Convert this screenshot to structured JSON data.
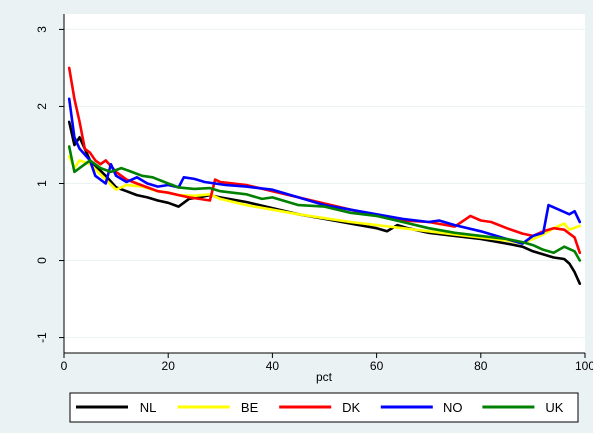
{
  "chart_data": {
    "type": "line",
    "title": "",
    "xlabel": "pct",
    "ylabel": "",
    "xlim": [
      0,
      100
    ],
    "ylim": [
      -1.2,
      3.2
    ],
    "xticks": [
      0,
      20,
      40,
      60,
      80,
      100
    ],
    "yticks": [
      -1,
      0,
      1,
      2,
      3
    ],
    "grid": "horizontal",
    "legend_position": "bottom",
    "series": [
      {
        "name": "NL",
        "color": "#000000",
        "points": [
          [
            1,
            1.8
          ],
          [
            2,
            1.5
          ],
          [
            3,
            1.6
          ],
          [
            5,
            1.3
          ],
          [
            8,
            1.1
          ],
          [
            10,
            0.95
          ],
          [
            12,
            0.9
          ],
          [
            14,
            0.85
          ],
          [
            16,
            0.82
          ],
          [
            18,
            0.78
          ],
          [
            20,
            0.75
          ],
          [
            22,
            0.7
          ],
          [
            24,
            0.8
          ],
          [
            26,
            0.82
          ],
          [
            28,
            0.85
          ],
          [
            30,
            0.82
          ],
          [
            35,
            0.76
          ],
          [
            40,
            0.68
          ],
          [
            45,
            0.6
          ],
          [
            50,
            0.54
          ],
          [
            55,
            0.48
          ],
          [
            60,
            0.42
          ],
          [
            62,
            0.38
          ],
          [
            64,
            0.46
          ],
          [
            66,
            0.42
          ],
          [
            70,
            0.36
          ],
          [
            75,
            0.32
          ],
          [
            80,
            0.28
          ],
          [
            85,
            0.22
          ],
          [
            88,
            0.18
          ],
          [
            90,
            0.12
          ],
          [
            92,
            0.08
          ],
          [
            94,
            0.04
          ],
          [
            96,
            0.02
          ],
          [
            97,
            -0.04
          ],
          [
            98,
            -0.15
          ],
          [
            99,
            -0.3
          ]
        ]
      },
      {
        "name": "BE",
        "color": "#ffff00",
        "points": [
          [
            1,
            1.35
          ],
          [
            2,
            1.2
          ],
          [
            3,
            1.3
          ],
          [
            5,
            1.25
          ],
          [
            8,
            1.05
          ],
          [
            10,
            0.92
          ],
          [
            12,
            0.98
          ],
          [
            15,
            0.96
          ],
          [
            18,
            0.9
          ],
          [
            20,
            0.88
          ],
          [
            22,
            0.85
          ],
          [
            25,
            0.84
          ],
          [
            28,
            0.86
          ],
          [
            30,
            0.8
          ],
          [
            35,
            0.72
          ],
          [
            40,
            0.66
          ],
          [
            45,
            0.6
          ],
          [
            50,
            0.55
          ],
          [
            55,
            0.5
          ],
          [
            60,
            0.46
          ],
          [
            65,
            0.42
          ],
          [
            70,
            0.38
          ],
          [
            75,
            0.34
          ],
          [
            80,
            0.3
          ],
          [
            85,
            0.26
          ],
          [
            88,
            0.22
          ],
          [
            90,
            0.28
          ],
          [
            92,
            0.34
          ],
          [
            94,
            0.42
          ],
          [
            96,
            0.48
          ],
          [
            97,
            0.4
          ],
          [
            99,
            0.45
          ]
        ]
      },
      {
        "name": "DK",
        "color": "#ff0000",
        "points": [
          [
            1,
            2.5
          ],
          [
            2,
            2.1
          ],
          [
            3,
            1.8
          ],
          [
            4,
            1.45
          ],
          [
            5,
            1.4
          ],
          [
            6,
            1.3
          ],
          [
            7,
            1.25
          ],
          [
            8,
            1.3
          ],
          [
            10,
            1.15
          ],
          [
            12,
            1.05
          ],
          [
            14,
            1.0
          ],
          [
            16,
            0.95
          ],
          [
            18,
            0.9
          ],
          [
            20,
            0.88
          ],
          [
            22,
            0.85
          ],
          [
            24,
            0.82
          ],
          [
            26,
            0.8
          ],
          [
            28,
            0.78
          ],
          [
            29,
            1.05
          ],
          [
            30,
            1.02
          ],
          [
            35,
            0.98
          ],
          [
            40,
            0.9
          ],
          [
            45,
            0.82
          ],
          [
            50,
            0.74
          ],
          [
            55,
            0.66
          ],
          [
            60,
            0.58
          ],
          [
            65,
            0.52
          ],
          [
            70,
            0.5
          ],
          [
            75,
            0.44
          ],
          [
            78,
            0.58
          ],
          [
            80,
            0.52
          ],
          [
            82,
            0.5
          ],
          [
            85,
            0.42
          ],
          [
            88,
            0.35
          ],
          [
            90,
            0.32
          ],
          [
            92,
            0.38
          ],
          [
            94,
            0.42
          ],
          [
            96,
            0.4
          ],
          [
            98,
            0.3
          ],
          [
            99,
            0.1
          ]
        ]
      },
      {
        "name": "NO",
        "color": "#0000ff",
        "points": [
          [
            1,
            2.1
          ],
          [
            2,
            1.6
          ],
          [
            3,
            1.45
          ],
          [
            5,
            1.3
          ],
          [
            6,
            1.1
          ],
          [
            8,
            1.0
          ],
          [
            9,
            1.25
          ],
          [
            10,
            1.1
          ],
          [
            12,
            1.02
          ],
          [
            14,
            1.08
          ],
          [
            16,
            1.0
          ],
          [
            18,
            0.96
          ],
          [
            20,
            0.98
          ],
          [
            22,
            0.95
          ],
          [
            23,
            1.08
          ],
          [
            25,
            1.06
          ],
          [
            27,
            1.02
          ],
          [
            29,
            1.0
          ],
          [
            31,
            0.98
          ],
          [
            35,
            0.96
          ],
          [
            40,
            0.92
          ],
          [
            45,
            0.82
          ],
          [
            50,
            0.72
          ],
          [
            55,
            0.66
          ],
          [
            60,
            0.6
          ],
          [
            65,
            0.54
          ],
          [
            70,
            0.5
          ],
          [
            72,
            0.52
          ],
          [
            75,
            0.46
          ],
          [
            80,
            0.38
          ],
          [
            85,
            0.28
          ],
          [
            88,
            0.22
          ],
          [
            90,
            0.32
          ],
          [
            92,
            0.36
          ],
          [
            93,
            0.72
          ],
          [
            95,
            0.66
          ],
          [
            97,
            0.6
          ],
          [
            98,
            0.64
          ],
          [
            99,
            0.5
          ]
        ]
      },
      {
        "name": "UK",
        "color": "#008000",
        "points": [
          [
            1,
            1.48
          ],
          [
            2,
            1.15
          ],
          [
            3,
            1.2
          ],
          [
            5,
            1.3
          ],
          [
            7,
            1.2
          ],
          [
            9,
            1.15
          ],
          [
            11,
            1.2
          ],
          [
            13,
            1.15
          ],
          [
            15,
            1.1
          ],
          [
            17,
            1.08
          ],
          [
            20,
            1.0
          ],
          [
            22,
            0.95
          ],
          [
            25,
            0.93
          ],
          [
            28,
            0.94
          ],
          [
            30,
            0.9
          ],
          [
            35,
            0.86
          ],
          [
            38,
            0.8
          ],
          [
            40,
            0.82
          ],
          [
            45,
            0.72
          ],
          [
            50,
            0.7
          ],
          [
            55,
            0.62
          ],
          [
            60,
            0.58
          ],
          [
            65,
            0.5
          ],
          [
            70,
            0.42
          ],
          [
            75,
            0.36
          ],
          [
            80,
            0.32
          ],
          [
            85,
            0.28
          ],
          [
            88,
            0.24
          ],
          [
            90,
            0.2
          ],
          [
            92,
            0.14
          ],
          [
            94,
            0.1
          ],
          [
            96,
            0.18
          ],
          [
            98,
            0.12
          ],
          [
            99,
            0.0
          ]
        ]
      }
    ]
  }
}
